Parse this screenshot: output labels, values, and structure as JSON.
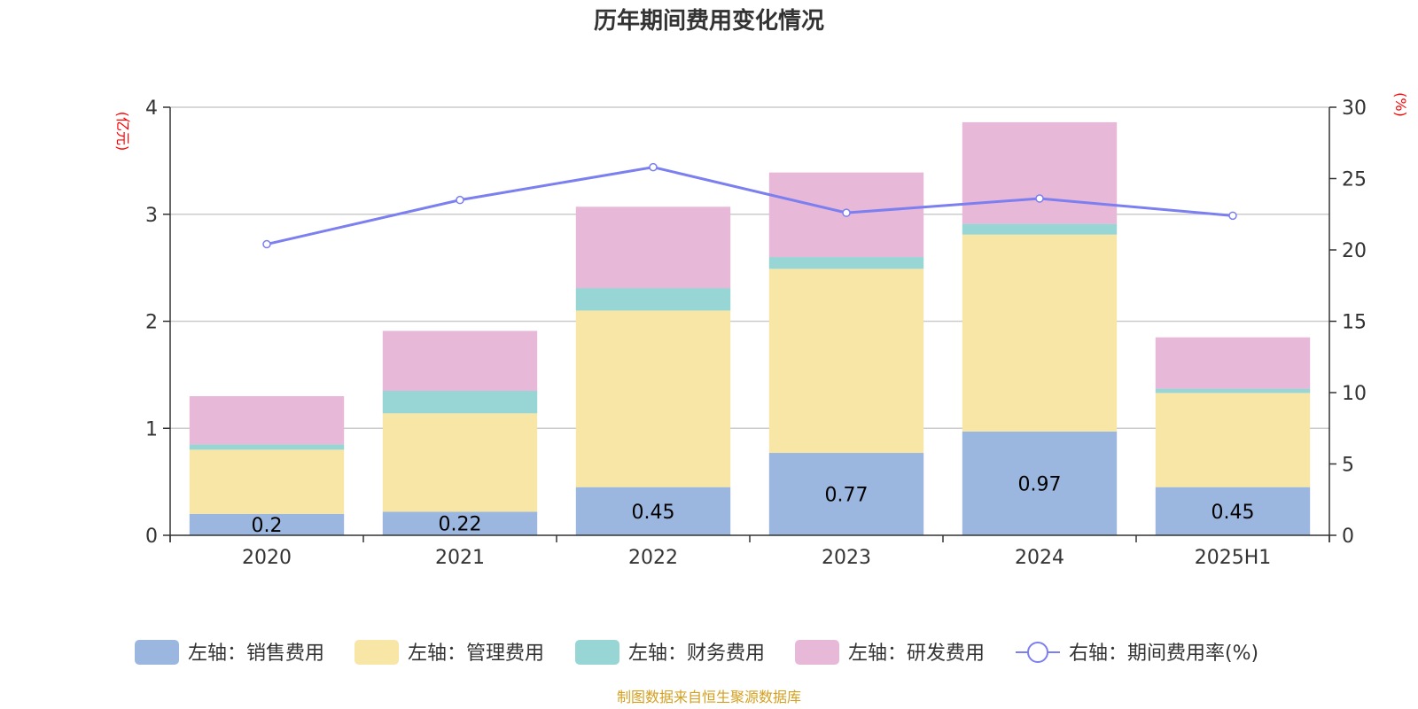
{
  "chart_data": {
    "type": "bar",
    "title": "历年期间费用变化情况",
    "left_axis_unit": "(亿元)",
    "right_axis_unit": "(%)",
    "categories": [
      "2020",
      "2021",
      "2022",
      "2023",
      "2024",
      "2025H1"
    ],
    "y_left": {
      "min": 0,
      "max": 4,
      "ticks": [
        "0",
        "1",
        "2",
        "3",
        "4"
      ]
    },
    "y_right": {
      "min": 0,
      "max": 30,
      "ticks": [
        "0",
        "5",
        "10",
        "15",
        "20",
        "25",
        "30"
      ]
    },
    "stacked": true,
    "series": [
      {
        "name": "左轴：销售费用",
        "axis": "left",
        "type": "bar",
        "color": "#9bb7e0",
        "values": [
          0.2,
          0.22,
          0.45,
          0.77,
          0.97,
          0.45
        ],
        "labels": [
          "0.2",
          "0.22",
          "0.45",
          "0.77",
          "0.97",
          "0.45"
        ]
      },
      {
        "name": "左轴：管理费用",
        "axis": "left",
        "type": "bar",
        "color": "#f7e6a6",
        "values": [
          0.6,
          0.92,
          1.65,
          1.72,
          1.84,
          0.88
        ]
      },
      {
        "name": "左轴：财务费用",
        "axis": "left",
        "type": "bar",
        "color": "#98d5d5",
        "values": [
          0.05,
          0.21,
          0.21,
          0.11,
          0.1,
          0.04
        ]
      },
      {
        "name": "左轴：研发费用",
        "axis": "left",
        "type": "bar",
        "color": "#e8b8d8",
        "values": [
          0.45,
          0.56,
          0.76,
          0.79,
          0.95,
          0.48
        ]
      },
      {
        "name": "右轴：期间费用率(%)",
        "axis": "right",
        "type": "line",
        "color": "#7b7fef",
        "values": [
          20.4,
          23.5,
          25.8,
          22.6,
          23.6,
          22.4
        ]
      }
    ],
    "legend_position": "bottom",
    "grid": true
  },
  "footer": {
    "source": "制图数据来自恒生聚源数据库"
  }
}
